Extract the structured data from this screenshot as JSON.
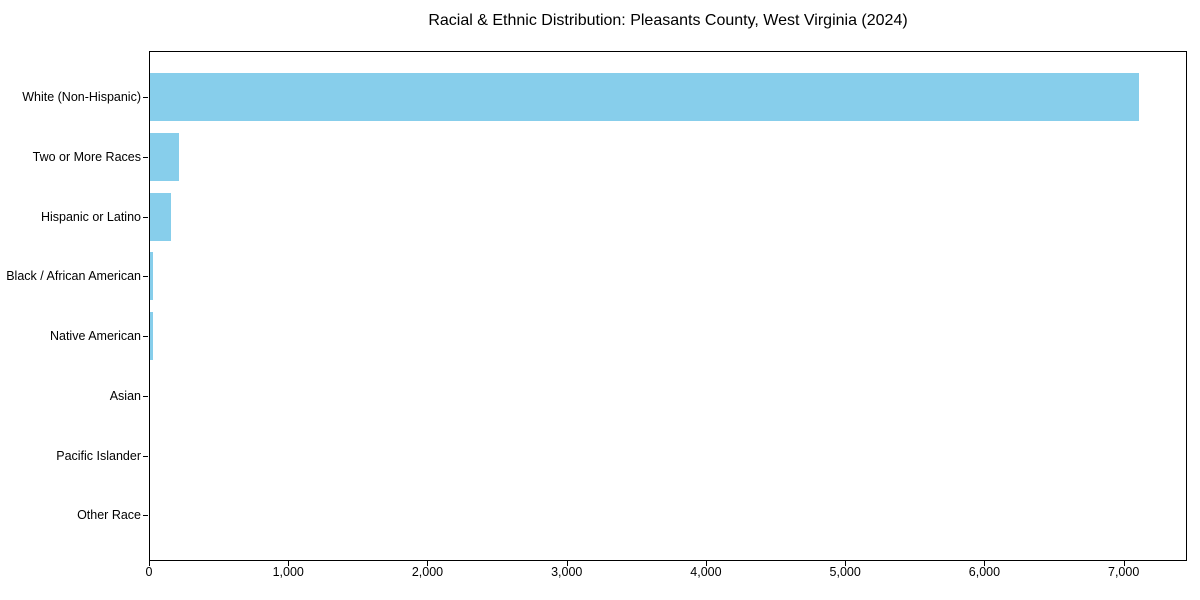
{
  "chart_data": {
    "type": "bar",
    "orientation": "horizontal",
    "title": "Racial & Ethnic Distribution: Pleasants County, West Virginia (2024)",
    "categories": [
      "White (Non-Hispanic)",
      "Two or More Races",
      "Hispanic or Latino",
      "Black / African American",
      "Native American",
      "Asian",
      "Pacific Islander",
      "Other Race"
    ],
    "values": [
      7100,
      210,
      150,
      25,
      20,
      0,
      0,
      0
    ],
    "xlabel": "",
    "ylabel": "",
    "xlim": [
      0,
      7455
    ],
    "x_ticks": [
      0,
      1000,
      2000,
      3000,
      4000,
      5000,
      6000,
      7000
    ],
    "x_tick_labels": [
      "0",
      "1,000",
      "2,000",
      "3,000",
      "4,000",
      "5,000",
      "6,000",
      "7,000"
    ],
    "bar_color": "#87CEEB",
    "axis_color": "#000000",
    "text_color": "#000000",
    "background_color": "#ffffff",
    "grid": false,
    "legend_position": "none"
  }
}
